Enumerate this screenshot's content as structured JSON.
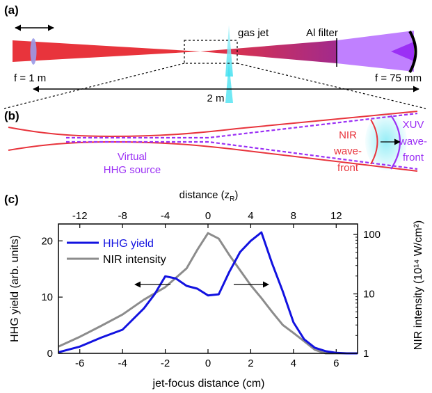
{
  "panel_a": {
    "label": "(a)",
    "focal_left": "f = 1 m",
    "gas_jet": "gas jet",
    "al_filter": "Al filter",
    "focal_right": "f = 75 mm",
    "distance": "2 m"
  },
  "panel_b": {
    "label": "(b)",
    "virtual_line1": "Virtual",
    "virtual_line2": "HHG source",
    "nir_line1": "NIR",
    "nir_line2": "wave-",
    "nir_line3": "front",
    "xuv_line1": "XUV",
    "xuv_line2": "wave-",
    "xuv_line3": "front"
  },
  "panel_c": {
    "label": "(c)"
  },
  "colors": {
    "nir": "#e8343c",
    "xuv": "#a64dff",
    "hhg_line": "#1212e0",
    "nir_line": "#8c8c8c",
    "gas": "#40e0f0"
  },
  "chart_data": {
    "type": "line",
    "xlabel": "jet-focus distance (cm)",
    "top_xlabel_main": "distance (z",
    "top_xlabel_sub": "R",
    "top_xlabel_close": ")",
    "ylabel": "HHG yield (arb. units)",
    "y2label": "NIR intensity (10¹⁴ W/cm²)",
    "xlim": [
      -7,
      7
    ],
    "ylim": [
      0,
      23
    ],
    "y2lim": [
      1,
      150
    ],
    "y2scale": "log",
    "xticks": [
      -6,
      -4,
      -2,
      0,
      2,
      4,
      6
    ],
    "top_xticks": [
      -12,
      -8,
      -4,
      0,
      4,
      8,
      12
    ],
    "yticks": [
      0,
      10,
      20
    ],
    "y2ticks": [
      1,
      10,
      100
    ],
    "legend_position": "top-left",
    "series": [
      {
        "name": "HHG yield",
        "axis": "left",
        "x": [
          -7,
          -6,
          -5,
          -4,
          -3,
          -2.5,
          -2,
          -1.5,
          -1,
          -0.5,
          0,
          0.5,
          1,
          1.5,
          2,
          2.5,
          3,
          3.5,
          4,
          4.5,
          5,
          5.5,
          6,
          6.5,
          7
        ],
        "y": [
          0.2,
          1.2,
          2.8,
          4.2,
          8.0,
          10.5,
          13.7,
          13.3,
          12.0,
          11.5,
          10.3,
          10.5,
          14.5,
          18.0,
          20.0,
          21.5,
          16.0,
          11.0,
          5.5,
          2.5,
          1.0,
          0.4,
          0.1,
          0,
          0
        ]
      },
      {
        "name": "NIR intensity",
        "axis": "right",
        "x": [
          -7,
          -6,
          -5,
          -4,
          -3,
          -2,
          -1,
          -0.5,
          0,
          0.5,
          1,
          1.5,
          2,
          2.5,
          3,
          3.5,
          4,
          4.5,
          5,
          5.5,
          6,
          6.5,
          7
        ],
        "y": [
          1.3,
          1.9,
          2.9,
          4.5,
          8.0,
          13.0,
          27.0,
          55.0,
          105.0,
          85.0,
          45.0,
          25.0,
          14.0,
          8.5,
          5.0,
          3.0,
          2.2,
          1.6,
          1.15,
          1.0,
          1.0,
          1.0,
          1.0
        ]
      }
    ],
    "annotations": [
      "arrow pointing left at HHG yield curve",
      "arrow pointing right at NIR intensity curve"
    ]
  }
}
